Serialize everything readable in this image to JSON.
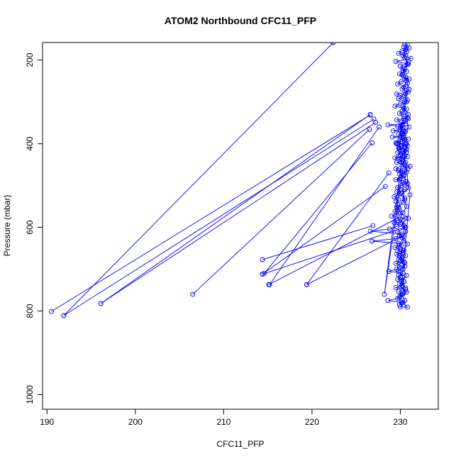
{
  "chart_data": {
    "type": "scatter",
    "title": "ATOM2 Northbound CFC11_PFP",
    "xlabel": "CFC11_PFP",
    "ylabel": "Pressure (mbar)",
    "xlim": [
      189.5,
      234.3
    ],
    "ylim": [
      1035,
      158
    ],
    "y_reversed": true,
    "grid": false,
    "legend": "none",
    "x_ticks": [
      190,
      200,
      210,
      220,
      230
    ],
    "y_ticks": [
      200,
      400,
      600,
      800,
      1000
    ],
    "colors": {
      "series": "#0000ff",
      "axis": "#000000",
      "background": "#ffffff"
    },
    "marker": "open-circle",
    "connected": true,
    "series": [
      {
        "x": [
          230.5,
          231.0,
          230.2,
          229.8,
          230.6,
          231.2,
          229.5,
          230.8,
          230.0,
          230.3,
          230.7,
          229.9,
          230.4,
          231.0,
          230.1,
          229.7,
          230.6,
          230.2,
          230.9,
          229.6,
          230.3,
          229.8,
          230.5,
          230.0,
          229.4,
          230.7,
          230.2,
          229.9,
          230.4,
          230.8,
          229.6,
          230.1,
          230.6,
          228.6,
          229.7,
          230.3,
          230.0,
          229.2,
          230.5,
          229.8,
          230.4,
          229.1,
          230.9,
          230.2,
          229.5,
          230.6,
          230.1,
          229.9,
          230.7,
          230.3,
          229.7,
          230.0,
          230.8,
          229.4,
          230.2,
          229.6,
          230.5,
          231.1,
          230.3,
          229.8,
          230.7,
          229.9,
          230.4,
          230.0,
          229.5,
          230.6,
          230.8,
          230.1,
          229.7,
          230.5,
          229.6,
          229.9,
          229.3,
          229.8,
          229.5,
          229.7,
          229.6,
          229.9,
          229.4,
          229.8,
          229.0,
          230.6,
          229.7,
          229.3,
          230.0,
          229.6,
          228.8,
          226.6,
          230.2,
          229.9,
          229.5,
          226.8,
          229.8,
          230.1,
          229.4,
          230.0,
          229.7,
          230.3,
          229.6,
          229.9,
          230.2,
          229.8,
          230.4,
          229.5,
          230.1,
          229.9,
          229.6,
          228.7,
          230.3,
          229.8,
          230.0,
          229.7,
          230.4,
          229.9,
          230.2,
          229.5,
          230.6,
          229.8,
          230.3,
          230.0,
          229.7,
          228.6,
          230.2,
          229.9,
          231.1,
          230.0,
          230.4,
          229.6,
          230.2,
          229.9,
          230.5,
          229.7,
          230.1,
          230.3,
          229.8,
          230.0,
          230.6,
          229.5,
          230.2,
          229.9,
          230.4,
          229.7,
          230.1,
          230.5,
          230.3,
          229.8,
          230.0,
          230.9,
          230.2,
          230.6,
          229.7,
          230.1,
          230.4,
          229.9,
          230.3,
          230.6,
          230.0,
          230.5,
          229.8,
          230.2,
          230.4,
          230.1,
          230.7,
          229.9,
          230.3,
          230.8,
          230.0,
          230.5,
          230.2,
          230.6,
          230.1,
          230.7,
          230.3,
          230.5,
          230.0,
          230.4,
          230.8,
          230.2,
          230.6,
          230.4,
          230.0,
          230.3,
          230.7,
          230.5,
          230.2,
          230.9,
          230.6,
          230.4,
          230.8,
          230.1,
          230.5,
          230.3,
          228.2,
          230.7,
          230.4,
          230.6,
          230.2,
          230.9,
          230.5,
          230.3,
          230.8,
          230.6,
          230.4,
          230.7,
          230.2,
          230.5,
          230.9,
          230.3,
          230.6,
          230.8,
          230.4,
          230.7,
          230.5,
          230.9,
          230.3,
          230.6,
          230.8,
          231.0,
          230.5,
          230.7,
          230.4,
          230.9,
          230.6,
          231.0,
          230.3,
          230.5,
          230.8,
          230.7,
          229.7
        ],
        "y": [
          162,
          171,
          178,
          184,
          190,
          196,
          203,
          209,
          214,
          221,
          227,
          233,
          240,
          245,
          251,
          257,
          263,
          269,
          276,
          281,
          287,
          292,
          299,
          304,
          310,
          317,
          322,
          328,
          334,
          338,
          343,
          349,
          352,
          355,
          358,
          361,
          366,
          369,
          372,
          377,
          381,
          384,
          389,
          394,
          398,
          401,
          405,
          410,
          414,
          418,
          422,
          427,
          431,
          434,
          440,
          445,
          449,
          454,
          459,
          464,
          468,
          472,
          477,
          482,
          486,
          490,
          495,
          500,
          505,
          510,
          515,
          520,
          527,
          533,
          538,
          545,
          551,
          556,
          562,
          567,
          573,
          578,
          583,
          588,
          593,
          598,
          604,
          609,
          616,
          621,
          627,
          633,
          638,
          643,
          648,
          652,
          656,
          660,
          664,
          668,
          672,
          677,
          682,
          686,
          691,
          695,
          700,
          705,
          710,
          714,
          719,
          724,
          729,
          734,
          739,
          744,
          749,
          754,
          759,
          765,
          770,
          775,
          780,
          785,
          522,
          360,
          340,
          400,
          356,
          414,
          406,
          398,
          385,
          370,
          410,
          429,
          445,
          460,
          472,
          486,
          497,
          505,
          518,
          530,
          540,
          552,
          565,
          578,
          590,
          600,
          611,
          620,
          632,
          642,
          655,
          668,
          680,
          693,
          705,
          718,
          730,
          742,
          755,
          768,
          780,
          791,
          790,
          775,
          760,
          745,
          730,
          715,
          700,
          685,
          670,
          655,
          640,
          625,
          610,
          595,
          580,
          565,
          550,
          535,
          520,
          505,
          490,
          475,
          460,
          445,
          430,
          415,
          760,
          400,
          385,
          370,
          355,
          340,
          325,
          310,
          295,
          280,
          265,
          250,
          235,
          220,
          205,
          190,
          175,
          163,
          168,
          180,
          195,
          210,
          225,
          240,
          255,
          270,
          285,
          300,
          315,
          330,
          345,
          360,
          375,
          390,
          405,
          420,
          435
        ],
        "note_excursions": "see excursions"
      }
    ],
    "excursions": [
      {
        "from": [
          226.6,
          331
        ],
        "to": [
          190.5,
          801
        ]
      },
      {
        "from": [
          227.0,
          341
        ],
        "to": [
          191.9,
          811
        ]
      },
      {
        "from": [
          227.2,
          349
        ],
        "to": [
          196.1,
          782
        ]
      },
      {
        "from": [
          226.5,
          366
        ],
        "to": [
          206.5,
          760
        ]
      },
      {
        "from": [
          226.6,
          330
        ],
        "to": [
          196.1,
          782
        ]
      },
      {
        "from": [
          228.3,
          502
        ],
        "to": [
          214.4,
          712
        ]
      },
      {
        "from": [
          226.9,
          596
        ],
        "to": [
          214.4,
          677
        ]
      },
      {
        "from": [
          227.6,
          360
        ],
        "to": [
          215.2,
          737
        ]
      },
      {
        "from": [
          228.7,
          470
        ],
        "to": [
          219.4,
          737
        ]
      },
      {
        "from": [
          226.8,
          398
        ],
        "to": [
          214.6,
          710
        ]
      },
      {
        "from": [
          229.5,
          580
        ],
        "to": [
          215.1,
          737
        ]
      },
      {
        "from": [
          230.5,
          600
        ],
        "to": [
          214.4,
          712
        ]
      },
      {
        "from": [
          230.3,
          620
        ],
        "to": [
          219.4,
          737
        ]
      },
      {
        "from": [
          222.4,
          158
        ],
        "to": [
          191.9,
          811
        ]
      }
    ]
  }
}
